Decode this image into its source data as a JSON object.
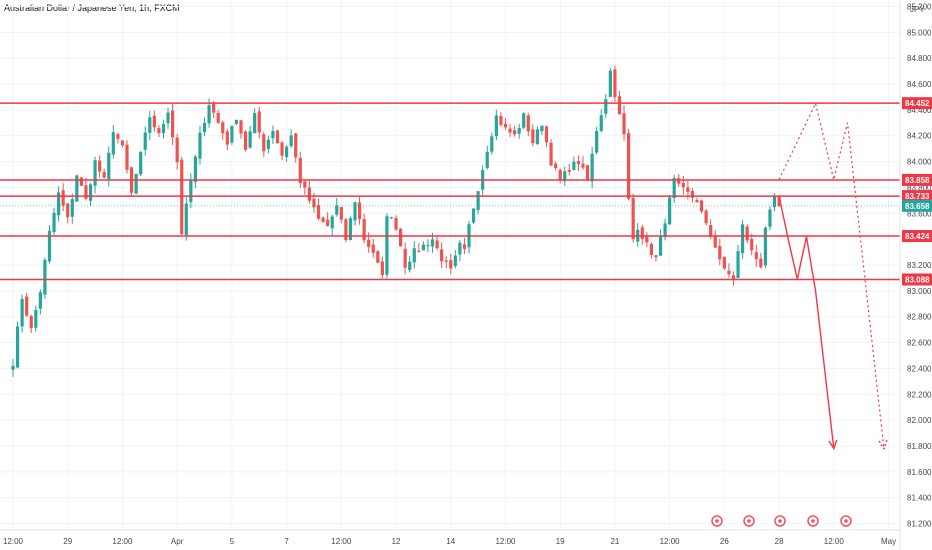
{
  "header": {
    "title": "Australian Dollar / Japanese Yen, 1h, FXCM"
  },
  "colors": {
    "up": "#26a69a",
    "down": "#ef5350",
    "level": "#f23645",
    "last": "#26a69a",
    "grid": "#f0f3fa"
  },
  "chart_data": {
    "type": "candlestick",
    "currency_label": "JPY",
    "ylim": [
      81.15,
      85.25
    ],
    "y_ticks": [
      {
        "v": 81.2,
        "label": "81.200"
      },
      {
        "v": 81.4,
        "label": "81.400"
      },
      {
        "v": 81.6,
        "label": "81.600"
      },
      {
        "v": 81.8,
        "label": "81.800"
      },
      {
        "v": 82.0,
        "label": "82.000"
      },
      {
        "v": 82.2,
        "label": "82.200"
      },
      {
        "v": 82.4,
        "label": "82.400"
      },
      {
        "v": 82.6,
        "label": "82.600"
      },
      {
        "v": 82.8,
        "label": "82.800"
      },
      {
        "v": 83.0,
        "label": "83.000"
      },
      {
        "v": 83.2,
        "label": "83.200"
      },
      {
        "v": 83.4,
        "label": "83.400"
      },
      {
        "v": 83.6,
        "label": "83.600"
      },
      {
        "v": 83.8,
        "label": "83.800"
      },
      {
        "v": 84.0,
        "label": "84.000"
      },
      {
        "v": 84.2,
        "label": "84.200"
      },
      {
        "v": 84.4,
        "label": "84.400"
      },
      {
        "v": 84.6,
        "label": "84.600"
      },
      {
        "v": 84.8,
        "label": "84.800"
      },
      {
        "v": 85.0,
        "label": "85.000"
      },
      {
        "v": 85.2,
        "label": "85.200"
      }
    ],
    "x_ticks": [
      {
        "t": 0,
        "label": "12:00"
      },
      {
        "t": 12,
        "label": "29"
      },
      {
        "t": 24,
        "label": "12:00"
      },
      {
        "t": 36,
        "label": "Apr"
      },
      {
        "t": 48,
        "label": "5"
      },
      {
        "t": 60,
        "label": "7"
      },
      {
        "t": 72,
        "label": "12:00"
      },
      {
        "t": 84,
        "label": "12"
      },
      {
        "t": 96,
        "label": "14"
      },
      {
        "t": 108,
        "label": "12:00"
      },
      {
        "t": 120,
        "label": "19"
      },
      {
        "t": 132,
        "label": "21"
      },
      {
        "t": 144,
        "label": "12:00"
      },
      {
        "t": 156,
        "label": "26"
      },
      {
        "t": 168,
        "label": "28"
      },
      {
        "t": 180,
        "label": "12:00"
      },
      {
        "t": 192,
        "label": "May"
      }
    ],
    "levels": [
      84.452,
      83.858,
      83.733,
      83.424,
      83.088
    ],
    "level_labels": [
      "84.452",
      "83.858",
      "83.733",
      "83.424",
      "83.088"
    ],
    "last_price": 83.658,
    "last_price_label": "83.658",
    "path": [
      [
        0,
        82.45
      ],
      [
        2,
        82.95
      ],
      [
        4,
        82.7
      ],
      [
        6,
        83.0
      ],
      [
        8,
        83.45
      ],
      [
        10,
        83.75
      ],
      [
        12,
        83.55
      ],
      [
        14,
        83.9
      ],
      [
        16,
        83.7
      ],
      [
        18,
        84.0
      ],
      [
        20,
        83.85
      ],
      [
        22,
        84.25
      ],
      [
        24,
        84.1
      ],
      [
        26,
        83.75
      ],
      [
        28,
        84.05
      ],
      [
        30,
        84.35
      ],
      [
        32,
        84.2
      ],
      [
        34,
        84.4
      ],
      [
        36,
        84.0
      ],
      [
        37,
        83.45
      ],
      [
        39,
        83.85
      ],
      [
        41,
        84.2
      ],
      [
        43,
        84.45
      ],
      [
        45,
        84.3
      ],
      [
        47,
        84.15
      ],
      [
        49,
        84.35
      ],
      [
        51,
        84.1
      ],
      [
        53,
        84.35
      ],
      [
        55,
        84.1
      ],
      [
        57,
        84.25
      ],
      [
        59,
        84.05
      ],
      [
        61,
        84.2
      ],
      [
        63,
        83.85
      ],
      [
        65,
        83.7
      ],
      [
        67,
        83.55
      ],
      [
        69,
        83.5
      ],
      [
        71,
        83.65
      ],
      [
        73,
        83.4
      ],
      [
        75,
        83.7
      ],
      [
        77,
        83.4
      ],
      [
        79,
        83.3
      ],
      [
        81,
        83.1
      ],
      [
        82,
        83.6
      ],
      [
        84,
        83.5
      ],
      [
        86,
        83.2
      ],
      [
        88,
        83.3
      ],
      [
        90,
        83.35
      ],
      [
        92,
        83.4
      ],
      [
        94,
        83.25
      ],
      [
        96,
        83.15
      ],
      [
        98,
        83.35
      ],
      [
        99,
        83.3
      ],
      [
        100,
        83.5
      ],
      [
        102,
        83.8
      ],
      [
        104,
        84.1
      ],
      [
        106,
        84.35
      ],
      [
        108,
        84.25
      ],
      [
        110,
        84.2
      ],
      [
        112,
        84.35
      ],
      [
        114,
        84.15
      ],
      [
        116,
        84.3
      ],
      [
        118,
        84.0
      ],
      [
        120,
        83.85
      ],
      [
        122,
        83.95
      ],
      [
        124,
        84.0
      ],
      [
        126,
        83.85
      ],
      [
        128,
        84.25
      ],
      [
        130,
        84.5
      ],
      [
        131,
        84.7
      ],
      [
        133,
        84.35
      ],
      [
        134,
        84.2
      ],
      [
        135,
        83.7
      ],
      [
        136,
        83.4
      ],
      [
        137,
        83.5
      ],
      [
        139,
        83.35
      ],
      [
        141,
        83.25
      ],
      [
        143,
        83.55
      ],
      [
        145,
        83.85
      ],
      [
        146,
        83.8
      ],
      [
        148,
        83.75
      ],
      [
        150,
        83.7
      ],
      [
        152,
        83.5
      ],
      [
        154,
        83.35
      ],
      [
        156,
        83.15
      ],
      [
        158,
        83.1
      ],
      [
        160,
        83.5
      ],
      [
        162,
        83.3
      ],
      [
        164,
        83.2
      ],
      [
        165,
        83.5
      ],
      [
        167,
        83.7
      ],
      [
        168,
        83.65
      ]
    ],
    "projection_solid": [
      [
        168,
        83.733
      ],
      [
        170,
        83.4
      ],
      [
        172,
        83.09
      ],
      [
        174,
        83.42
      ],
      [
        176,
        83.0
      ],
      [
        180,
        81.78
      ]
    ],
    "projection_dotted": [
      [
        168,
        83.86
      ],
      [
        176,
        84.45
      ],
      [
        180,
        83.86
      ],
      [
        183,
        84.3
      ],
      [
        191,
        81.78
      ]
    ],
    "projection_start_index": 168
  }
}
